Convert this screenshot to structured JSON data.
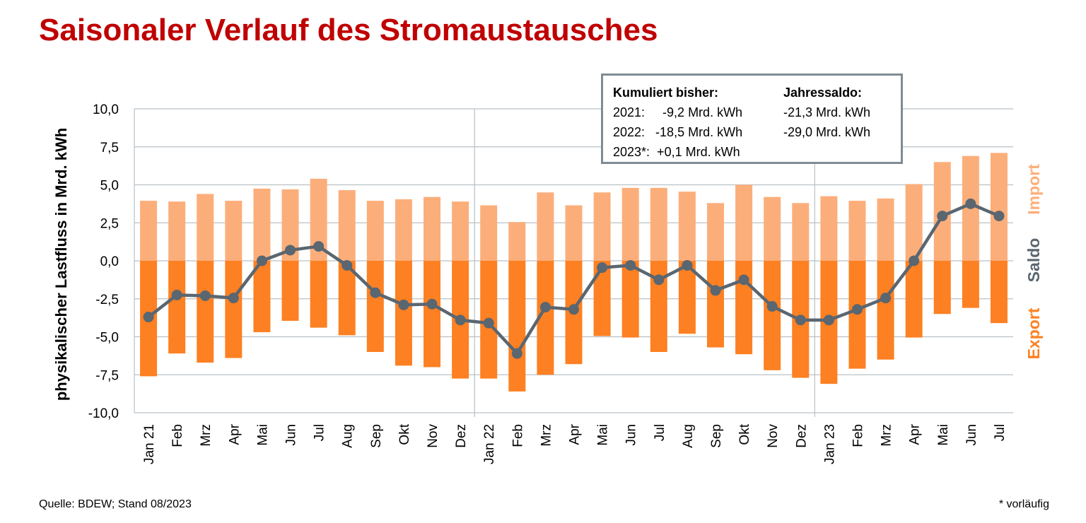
{
  "title": "Saisonaler Verlauf des Stromaustausches",
  "source": "Quelle: BDEW; Stand 08/2023",
  "note": "* vorläufig",
  "infobox": {
    "header_left": "Kumuliert bisher:",
    "header_right": "Jahressaldo:",
    "rows": [
      {
        "left": "2021:     -9,2 Mrd. kWh",
        "right": "-21,3 Mrd. kWh"
      },
      {
        "left": "2022:   -18,5 Mrd. kWh",
        "right": "-29,0 Mrd. kWh"
      },
      {
        "left": "2023*:  +0,1 Mrd. kWh",
        "right": ""
      }
    ]
  },
  "chart_data": {
    "type": "bar",
    "ylabel": "physikalischer Lastfluss in Mrd. kWh",
    "ylim": [
      -10,
      10
    ],
    "yticks": [
      "10,0",
      "7,5",
      "5,0",
      "2,5",
      "0,0",
      "-2,5",
      "-5,0",
      "-7,5",
      "-10,0"
    ],
    "categories": [
      "Jan 21",
      "Feb",
      "Mrz",
      "Apr",
      "Mai",
      "Jun",
      "Jul",
      "Aug",
      "Sep",
      "Okt",
      "Nov",
      "Dez",
      "Jan 22",
      "Feb",
      "Mrz",
      "Apr",
      "Mai",
      "Jun",
      "Jul",
      "Aug",
      "Sep",
      "Okt",
      "Nov",
      "Dez",
      "Jan 23",
      "Feb",
      "Mrz",
      "Apr",
      "Mai",
      "Jun",
      "Jul"
    ],
    "series": [
      {
        "name": "Import",
        "kind": "bar",
        "color": "#fcae7a",
        "values": [
          3.95,
          3.9,
          4.4,
          3.95,
          4.75,
          4.7,
          5.4,
          4.65,
          3.95,
          4.05,
          4.2,
          3.9,
          3.65,
          2.55,
          4.5,
          3.65,
          4.5,
          4.8,
          4.8,
          4.55,
          3.8,
          5.0,
          4.2,
          3.8,
          4.25,
          3.95,
          4.1,
          5.05,
          6.5,
          6.9,
          7.1
        ]
      },
      {
        "name": "Export",
        "kind": "bar",
        "color": "#fd8022",
        "values": [
          -7.6,
          -6.1,
          -6.7,
          -6.4,
          -4.7,
          -3.95,
          -4.4,
          -4.9,
          -6.0,
          -6.9,
          -7.0,
          -7.75,
          -7.75,
          -8.6,
          -7.5,
          -6.8,
          -4.95,
          -5.05,
          -6.0,
          -4.8,
          -5.7,
          -6.15,
          -7.2,
          -7.7,
          -8.1,
          -7.1,
          -6.5,
          -5.05,
          -3.5,
          -3.1,
          -4.1
        ]
      },
      {
        "name": "Saldo",
        "kind": "line",
        "color": "#5a6670",
        "values": [
          -3.7,
          -2.25,
          -2.3,
          -2.45,
          0.0,
          0.7,
          0.95,
          -0.3,
          -2.1,
          -2.9,
          -2.85,
          -3.9,
          -4.1,
          -6.1,
          -3.05,
          -3.2,
          -0.45,
          -0.3,
          -1.25,
          -0.3,
          -1.95,
          -1.25,
          -3.0,
          -3.9,
          -3.9,
          -3.2,
          -2.45,
          0.0,
          2.95,
          3.75,
          2.95
        ]
      }
    ],
    "year_separators_after": [
      "Dez"
    ],
    "grid": true
  },
  "colors": {
    "title": "#c00000",
    "import": "#fcae7a",
    "export": "#fd8022",
    "saldo": "#5a6670",
    "grid": "#b8c0c6"
  }
}
